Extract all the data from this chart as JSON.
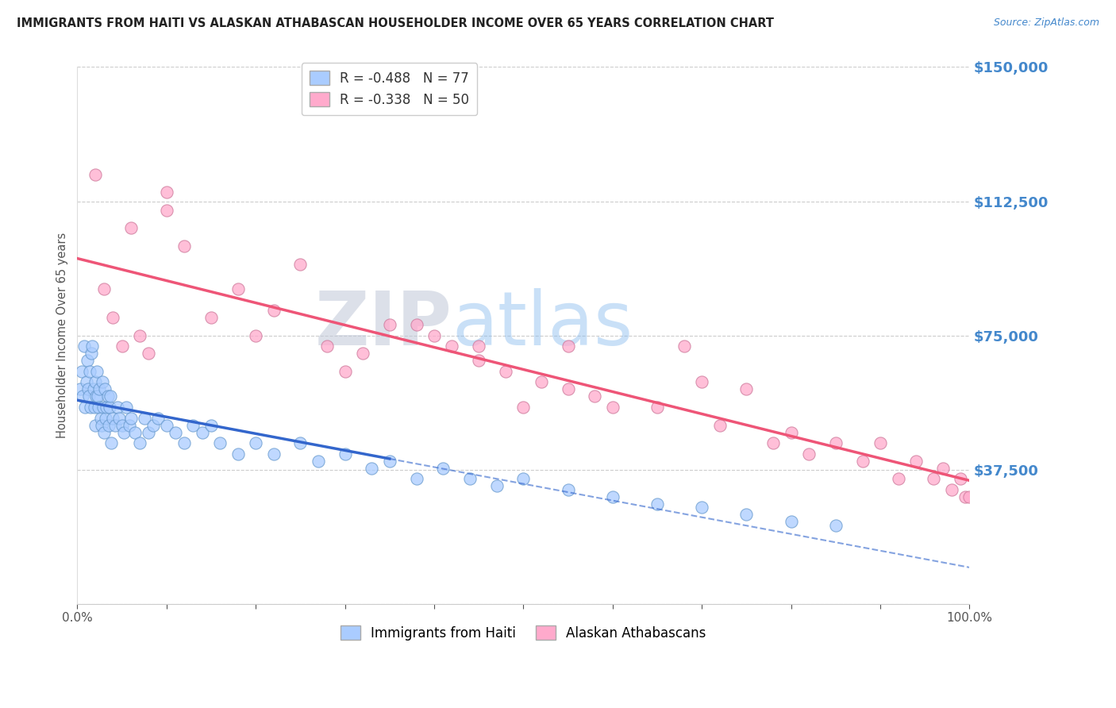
{
  "title": "IMMIGRANTS FROM HAITI VS ALASKAN ATHABASCAN HOUSEHOLDER INCOME OVER 65 YEARS CORRELATION CHART",
  "source": "Source: ZipAtlas.com",
  "ylabel": "Householder Income Over 65 years",
  "ylim": [
    0,
    150000
  ],
  "xlim": [
    0,
    100
  ],
  "yticks": [
    0,
    37500,
    75000,
    112500,
    150000
  ],
  "ytick_labels": [
    "",
    "$37,500",
    "$75,000",
    "$112,500",
    "$150,000"
  ],
  "title_color": "#222222",
  "source_color": "#4488cc",
  "yticklabel_color": "#4488cc",
  "watermark_zip": "ZIP",
  "watermark_atlas": "atlas",
  "series1_label": "Immigrants from Haiti",
  "series2_label": "Alaskan Athabascans",
  "series1_color": "#aaccff",
  "series2_color": "#ffaacc",
  "series1_edge": "#6699cc",
  "series2_edge": "#cc7799",
  "series1_R": -0.488,
  "series1_N": 77,
  "series2_R": -0.338,
  "series2_N": 50,
  "trendline1_solid_color": "#3366cc",
  "trendline2_color": "#ee5577",
  "background_color": "#ffffff",
  "grid_color": "#cccccc",
  "haiti_x": [
    0.3,
    0.5,
    0.6,
    0.8,
    0.9,
    1.0,
    1.1,
    1.2,
    1.3,
    1.4,
    1.5,
    1.6,
    1.7,
    1.8,
    1.9,
    2.0,
    2.0,
    2.1,
    2.2,
    2.3,
    2.4,
    2.5,
    2.6,
    2.7,
    2.8,
    2.9,
    3.0,
    3.1,
    3.2,
    3.3,
    3.4,
    3.5,
    3.6,
    3.7,
    3.8,
    4.0,
    4.2,
    4.5,
    4.7,
    5.0,
    5.2,
    5.5,
    5.8,
    6.0,
    6.5,
    7.0,
    7.5,
    8.0,
    8.5,
    9.0,
    10.0,
    11.0,
    12.0,
    13.0,
    14.0,
    15.0,
    16.0,
    18.0,
    20.0,
    22.0,
    25.0,
    27.0,
    30.0,
    33.0,
    35.0,
    38.0,
    41.0,
    44.0,
    47.0,
    50.0,
    55.0,
    60.0,
    65.0,
    70.0,
    75.0,
    80.0,
    85.0
  ],
  "haiti_y": [
    60000,
    65000,
    58000,
    72000,
    55000,
    62000,
    68000,
    60000,
    58000,
    65000,
    55000,
    70000,
    72000,
    60000,
    55000,
    62000,
    50000,
    58000,
    65000,
    58000,
    55000,
    60000,
    52000,
    50000,
    62000,
    55000,
    48000,
    60000,
    52000,
    55000,
    58000,
    50000,
    55000,
    58000,
    45000,
    52000,
    50000,
    55000,
    52000,
    50000,
    48000,
    55000,
    50000,
    52000,
    48000,
    45000,
    52000,
    48000,
    50000,
    52000,
    50000,
    48000,
    45000,
    50000,
    48000,
    50000,
    45000,
    42000,
    45000,
    42000,
    45000,
    40000,
    42000,
    38000,
    40000,
    35000,
    38000,
    35000,
    33000,
    35000,
    32000,
    30000,
    28000,
    27000,
    25000,
    23000,
    22000
  ],
  "athabascan_x": [
    2.0,
    3.0,
    4.0,
    5.0,
    6.0,
    7.0,
    8.0,
    10.0,
    12.0,
    15.0,
    18.0,
    20.0,
    22.0,
    25.0,
    28.0,
    32.0,
    35.0,
    38.0,
    40.0,
    42.0,
    45.0,
    48.0,
    50.0,
    52.0,
    55.0,
    58.0,
    60.0,
    65.0,
    70.0,
    72.0,
    75.0,
    78.0,
    80.0,
    82.0,
    85.0,
    88.0,
    90.0,
    92.0,
    94.0,
    96.0,
    97.0,
    98.0,
    99.0,
    99.5,
    100.0,
    30.0,
    55.0,
    68.0,
    10.0,
    45.0
  ],
  "athabascan_y": [
    120000,
    88000,
    80000,
    72000,
    105000,
    75000,
    70000,
    115000,
    100000,
    80000,
    88000,
    75000,
    82000,
    95000,
    72000,
    70000,
    78000,
    78000,
    75000,
    72000,
    68000,
    65000,
    55000,
    62000,
    60000,
    58000,
    55000,
    55000,
    62000,
    50000,
    60000,
    45000,
    48000,
    42000,
    45000,
    40000,
    45000,
    35000,
    40000,
    35000,
    38000,
    32000,
    35000,
    30000,
    30000,
    65000,
    72000,
    72000,
    110000,
    72000
  ]
}
